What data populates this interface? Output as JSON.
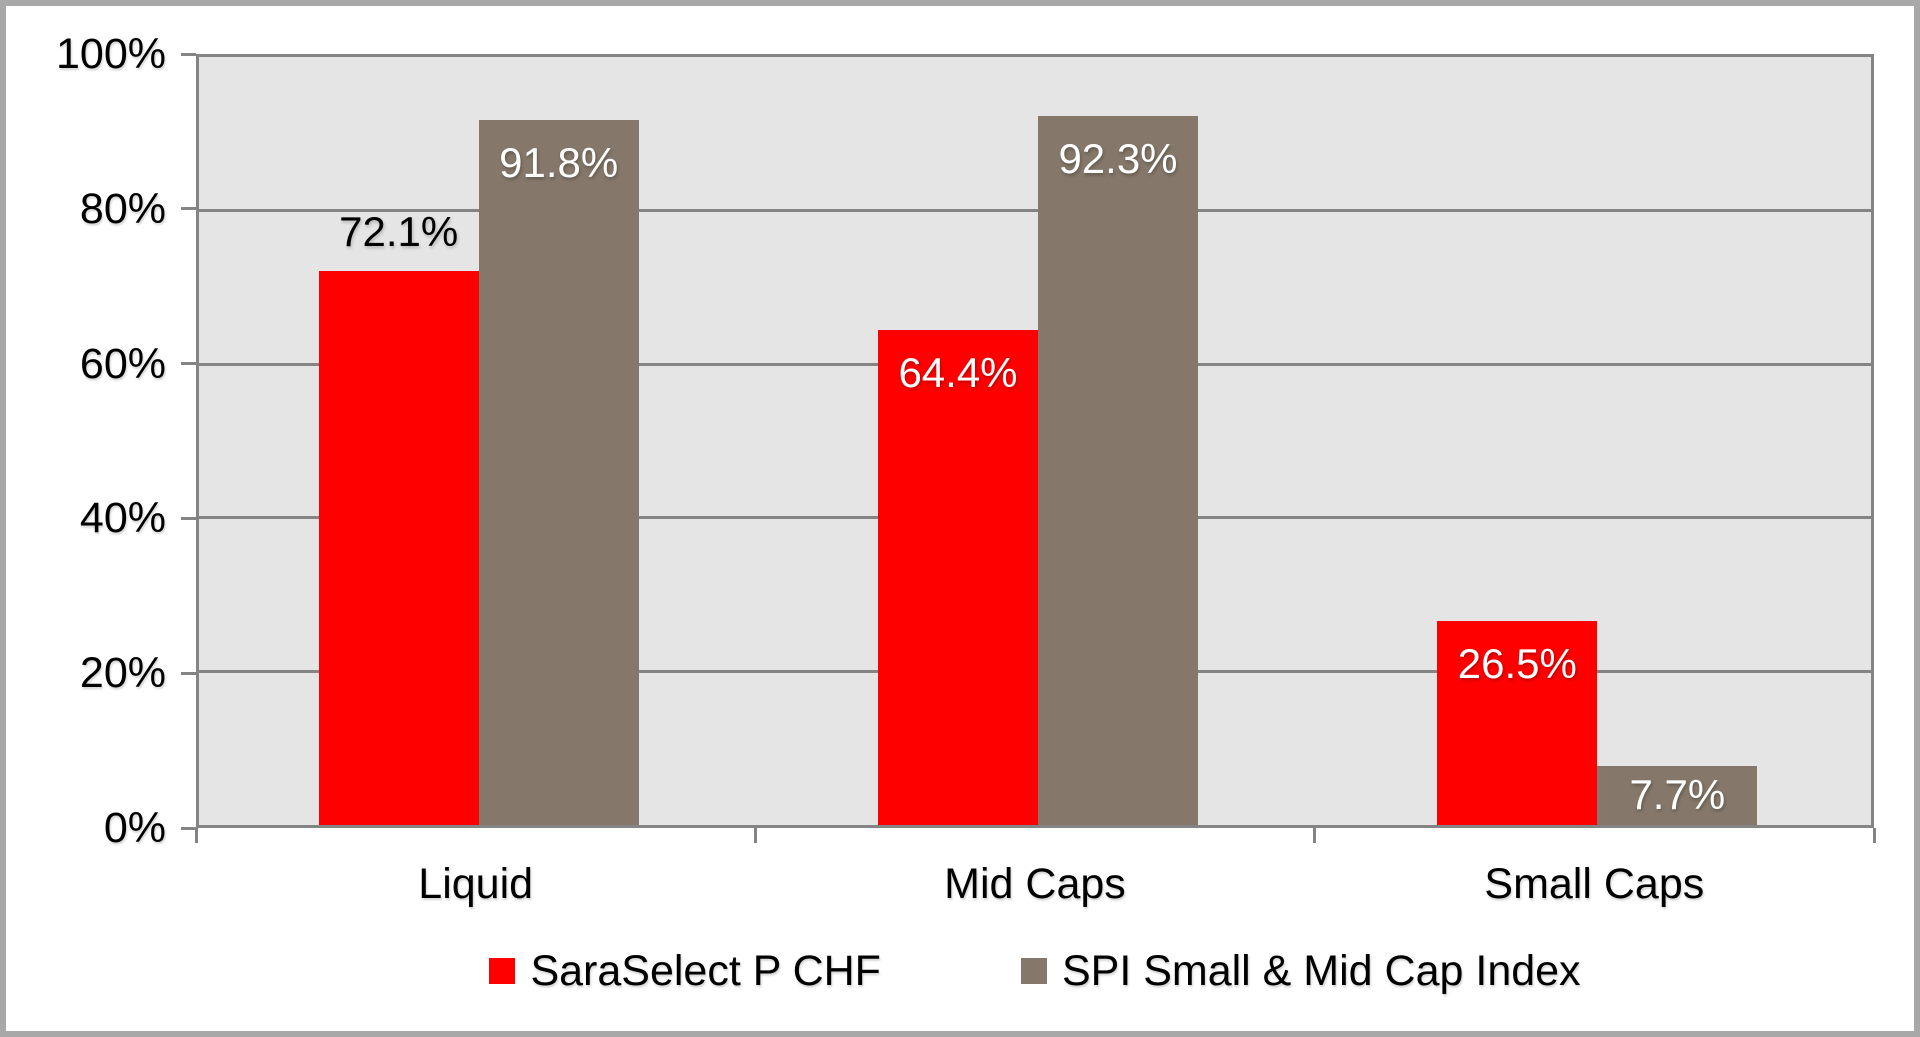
{
  "chart_data": {
    "type": "bar",
    "categories": [
      "Liquid",
      "Mid Caps",
      "Small Caps"
    ],
    "series": [
      {
        "name": "SaraSelect P CHF",
        "color": "#ff0000",
        "points": [
          {
            "value": 72.1,
            "label": "72.1%",
            "label_pos": "above",
            "label_color": "#000000"
          },
          {
            "value": 64.4,
            "label": "64.4%",
            "label_pos": "inside",
            "label_color": "#ffffff"
          },
          {
            "value": 26.5,
            "label": "26.5%",
            "label_pos": "inside",
            "label_color": "#ffffff"
          }
        ]
      },
      {
        "name": "SPI Small & Mid Cap Index",
        "color": "#85786a",
        "points": [
          {
            "value": 91.8,
            "label": "91.8%",
            "label_pos": "inside",
            "label_color": "#ffffff"
          },
          {
            "value": 92.3,
            "label": "92.3%",
            "label_pos": "inside",
            "label_color": "#ffffff"
          },
          {
            "value": 7.7,
            "label": "7.7%",
            "label_pos": "inside-center",
            "label_color": "#ffffff"
          }
        ]
      }
    ],
    "y_axis": {
      "min": 0,
      "max": 100,
      "ticks": [
        {
          "value": 0,
          "label": "0%"
        },
        {
          "value": 20,
          "label": "20%"
        },
        {
          "value": 40,
          "label": "40%"
        },
        {
          "value": 60,
          "label": "60%"
        },
        {
          "value": 80,
          "label": "80%"
        },
        {
          "value": 100,
          "label": "100%"
        }
      ]
    },
    "grid": true,
    "legend_position": "bottom",
    "colors": {
      "plot_background": "#e5e5e5",
      "gridline": "#848484",
      "axis": "#848484",
      "frame_border": "#a8a8a8",
      "canvas_background": "#ffffff"
    }
  }
}
